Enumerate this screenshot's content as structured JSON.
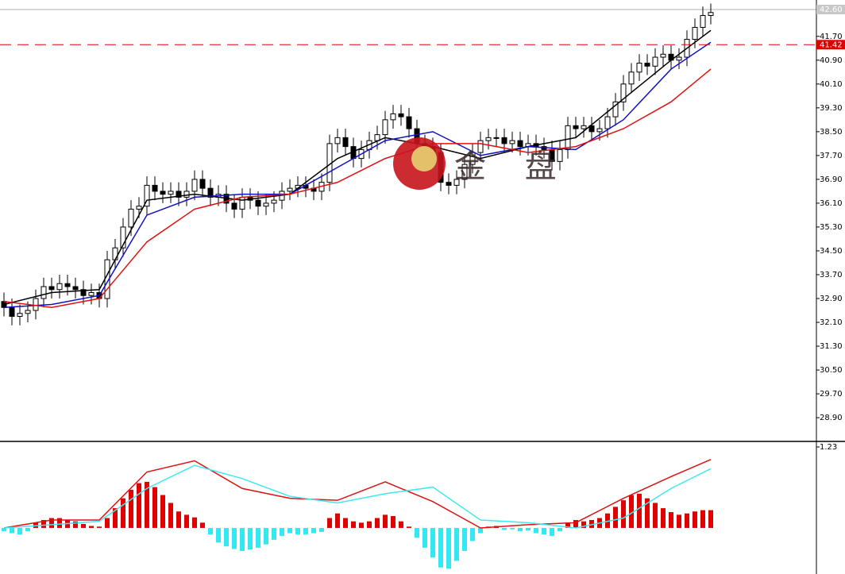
{
  "watermark": "金 盘",
  "chart_data": [
    {
      "type": "candlestick",
      "up_color": "#ffffff",
      "down_color": "#000000",
      "edge_color": "#000000",
      "ylim": [
        28.13,
        42.6
      ],
      "yticks": [
        {
          "value": 41.7,
          "label": "41.70"
        },
        {
          "value": 40.9,
          "label": "40.90"
        },
        {
          "value": 40.1,
          "label": "40.10"
        },
        {
          "value": 39.3,
          "label": "39.30"
        },
        {
          "value": 38.5,
          "label": "38.50"
        },
        {
          "value": 37.7,
          "label": "37.70"
        },
        {
          "value": 36.9,
          "label": "36.90"
        },
        {
          "value": 36.1,
          "label": "36.10"
        },
        {
          "value": 35.3,
          "label": "35.30"
        },
        {
          "value": 34.5,
          "label": "34.50"
        },
        {
          "value": 33.7,
          "label": "33.70"
        },
        {
          "value": 32.9,
          "label": "32.90"
        },
        {
          "value": 32.1,
          "label": "32.10"
        },
        {
          "value": 31.3,
          "label": "31.30"
        },
        {
          "value": 30.5,
          "label": "30.50"
        },
        {
          "value": 29.7,
          "label": "29.70"
        },
        {
          "value": 28.9,
          "label": "28.90"
        }
      ],
      "price_line": {
        "value": 41.42,
        "label": "41.42",
        "color": "#e00000"
      },
      "price_marker": {
        "value": 42.6,
        "label": "42.60",
        "color": "#c8c8c8"
      },
      "open": [
        32.8,
        32.6,
        32.3,
        32.4,
        32.5,
        32.9,
        33.3,
        33.2,
        33.4,
        33.3,
        33.2,
        33.0,
        33.1,
        32.9,
        34.2,
        34.6,
        35.3,
        35.9,
        36.0,
        36.7,
        36.5,
        36.4,
        36.5,
        36.3,
        36.5,
        36.9,
        36.6,
        36.3,
        36.4,
        36.1,
        35.9,
        36.3,
        36.2,
        36.0,
        36.1,
        36.2,
        36.5,
        36.6,
        36.7,
        36.6,
        36.5,
        36.8,
        38.1,
        38.3,
        38.0,
        37.6,
        37.9,
        38.2,
        38.4,
        38.9,
        39.1,
        39.0,
        38.6,
        38.1,
        38.0,
        37.8,
        36.8,
        36.7,
        36.9,
        37.4,
        37.8,
        38.2,
        38.3,
        38.3,
        38.1,
        38.2,
        38.0,
        38.1,
        38.0,
        37.9,
        37.5,
        37.9,
        38.7,
        38.6,
        38.7,
        38.5,
        38.6,
        39.0,
        39.5,
        40.1,
        40.5,
        40.8,
        40.7,
        41.0,
        41.1,
        40.9,
        41.0,
        41.6,
        42.0,
        42.4
      ],
      "high": [
        33.1,
        32.9,
        32.7,
        32.8,
        33.2,
        33.6,
        33.6,
        33.7,
        33.7,
        33.6,
        33.5,
        33.4,
        33.4,
        34.5,
        34.9,
        35.6,
        36.2,
        36.3,
        37.0,
        37.0,
        36.8,
        36.8,
        36.8,
        36.8,
        37.2,
        37.2,
        36.9,
        36.7,
        36.7,
        36.4,
        36.6,
        36.6,
        36.5,
        36.4,
        36.5,
        36.8,
        36.9,
        37.0,
        37.0,
        36.9,
        37.1,
        38.4,
        38.6,
        38.6,
        38.3,
        38.2,
        38.5,
        38.7,
        39.2,
        39.4,
        39.4,
        39.3,
        38.9,
        38.4,
        38.3,
        38.1,
        37.1,
        37.2,
        37.7,
        38.1,
        38.5,
        38.6,
        38.6,
        38.6,
        38.5,
        38.5,
        38.4,
        38.4,
        38.3,
        38.2,
        38.2,
        39.0,
        39.0,
        39.0,
        39.0,
        38.9,
        39.3,
        39.8,
        40.4,
        40.8,
        41.1,
        41.1,
        41.3,
        41.4,
        41.4,
        41.3,
        41.9,
        42.3,
        42.7,
        42.8
      ],
      "low": [
        32.3,
        32.0,
        32.0,
        32.1,
        32.2,
        32.6,
        32.9,
        32.9,
        33.0,
        32.9,
        32.7,
        32.7,
        32.6,
        32.6,
        33.9,
        34.3,
        35.0,
        35.6,
        35.7,
        36.2,
        36.1,
        36.1,
        36.0,
        36.0,
        36.2,
        36.3,
        36.0,
        36.0,
        35.8,
        35.6,
        35.6,
        35.9,
        35.7,
        35.7,
        35.8,
        35.9,
        36.2,
        36.3,
        36.3,
        36.2,
        36.2,
        36.5,
        37.8,
        37.7,
        37.3,
        37.3,
        37.6,
        37.9,
        38.1,
        38.6,
        38.7,
        38.3,
        37.8,
        37.7,
        37.5,
        36.5,
        36.4,
        36.4,
        36.6,
        37.1,
        37.5,
        37.9,
        38.0,
        37.8,
        37.8,
        37.7,
        37.7,
        37.7,
        37.6,
        37.2,
        37.2,
        37.6,
        38.3,
        38.3,
        38.2,
        38.2,
        38.3,
        38.7,
        39.2,
        39.8,
        40.2,
        40.4,
        40.4,
        40.7,
        40.6,
        40.6,
        40.7,
        41.3,
        41.7,
        42.1
      ],
      "close": [
        32.6,
        32.3,
        32.4,
        32.5,
        32.9,
        33.3,
        33.2,
        33.4,
        33.3,
        33.2,
        33.0,
        33.1,
        32.9,
        34.2,
        34.6,
        35.3,
        35.9,
        36.0,
        36.7,
        36.5,
        36.4,
        36.5,
        36.3,
        36.5,
        36.9,
        36.6,
        36.3,
        36.4,
        36.1,
        35.9,
        36.3,
        36.2,
        36.0,
        36.1,
        36.2,
        36.5,
        36.6,
        36.7,
        36.6,
        36.5,
        36.8,
        38.1,
        38.3,
        38.0,
        37.6,
        37.9,
        38.2,
        38.4,
        38.9,
        39.1,
        39.0,
        38.6,
        38.1,
        38.0,
        37.8,
        36.8,
        36.7,
        36.9,
        37.4,
        37.8,
        38.2,
        38.3,
        38.3,
        38.1,
        38.2,
        38.0,
        38.1,
        38.0,
        37.9,
        37.5,
        37.9,
        38.7,
        38.6,
        38.7,
        38.5,
        38.6,
        39.0,
        39.5,
        40.1,
        40.5,
        40.8,
        40.7,
        41.0,
        41.1,
        40.9,
        41.0,
        41.6,
        42.0,
        42.4,
        42.5
      ],
      "series": [
        {
          "color": "#000000",
          "x": [
            0,
            6,
            12,
            18,
            24,
            30,
            36,
            42,
            48,
            54,
            60,
            66,
            72,
            78,
            84,
            89
          ],
          "values": [
            32.7,
            33.1,
            33.2,
            36.2,
            36.4,
            36.2,
            36.4,
            37.6,
            38.3,
            38.0,
            37.6,
            38.0,
            38.3,
            39.6,
            40.9,
            41.9
          ]
        },
        {
          "color": "#1010c8",
          "x": [
            0,
            6,
            12,
            18,
            24,
            30,
            36,
            42,
            48,
            54,
            60,
            66,
            72,
            78,
            84,
            89
          ],
          "values": [
            32.6,
            32.7,
            33.0,
            35.7,
            36.3,
            36.4,
            36.4,
            37.3,
            38.2,
            38.5,
            37.7,
            38.0,
            37.9,
            38.9,
            40.6,
            41.5
          ]
        },
        {
          "color": "#e01010",
          "x": [
            0,
            6,
            12,
            18,
            24,
            30,
            36,
            42,
            48,
            54,
            60,
            66,
            72,
            78,
            84,
            89
          ],
          "values": [
            32.8,
            32.6,
            32.9,
            34.8,
            35.9,
            36.3,
            36.4,
            36.8,
            37.6,
            38.1,
            38.1,
            37.8,
            38.0,
            38.6,
            39.5,
            40.6
          ]
        }
      ]
    },
    {
      "type": "macd",
      "ylim": [
        -0.7,
        1.23
      ],
      "yticks": [
        1.23
      ],
      "up_color": "#e00000",
      "down_color": "#33e8f0",
      "histogram": [
        -0.05,
        -0.08,
        -0.1,
        -0.05,
        0.08,
        0.12,
        0.15,
        0.15,
        0.12,
        0.1,
        0.06,
        0.03,
        0.02,
        0.15,
        0.3,
        0.45,
        0.58,
        0.68,
        0.7,
        0.62,
        0.5,
        0.38,
        0.25,
        0.2,
        0.16,
        0.08,
        -0.1,
        -0.22,
        -0.28,
        -0.32,
        -0.35,
        -0.33,
        -0.3,
        -0.25,
        -0.18,
        -0.12,
        -0.08,
        -0.1,
        -0.1,
        -0.08,
        -0.06,
        0.15,
        0.22,
        0.15,
        0.1,
        0.08,
        0.1,
        0.15,
        0.2,
        0.18,
        0.1,
        0.02,
        -0.15,
        -0.3,
        -0.45,
        -0.6,
        -0.62,
        -0.5,
        -0.35,
        -0.2,
        -0.08,
        0.02,
        0.03,
        -0.03,
        -0.02,
        -0.05,
        -0.04,
        -0.08,
        -0.1,
        -0.12,
        -0.05,
        0.08,
        0.12,
        0.1,
        0.12,
        0.15,
        0.22,
        0.32,
        0.42,
        0.5,
        0.52,
        0.45,
        0.38,
        0.3,
        0.24,
        0.2,
        0.22,
        0.25,
        0.27,
        0.27
      ],
      "series": [
        {
          "color": "#e01010",
          "x": [
            0,
            6,
            12,
            18,
            24,
            30,
            36,
            42,
            48,
            54,
            60,
            66,
            72,
            78,
            84,
            89
          ],
          "values": [
            0.0,
            0.12,
            0.12,
            0.85,
            1.02,
            0.6,
            0.45,
            0.42,
            0.7,
            0.4,
            0.0,
            0.05,
            0.08,
            0.45,
            0.78,
            1.04
          ]
        },
        {
          "color": "#40e8f0",
          "x": [
            0,
            6,
            12,
            18,
            24,
            30,
            36,
            42,
            48,
            54,
            60,
            66,
            72,
            78,
            84,
            89
          ],
          "values": [
            0.0,
            0.05,
            0.1,
            0.6,
            0.95,
            0.75,
            0.48,
            0.38,
            0.52,
            0.62,
            0.12,
            0.08,
            0.0,
            0.15,
            0.6,
            0.9
          ]
        }
      ]
    }
  ]
}
